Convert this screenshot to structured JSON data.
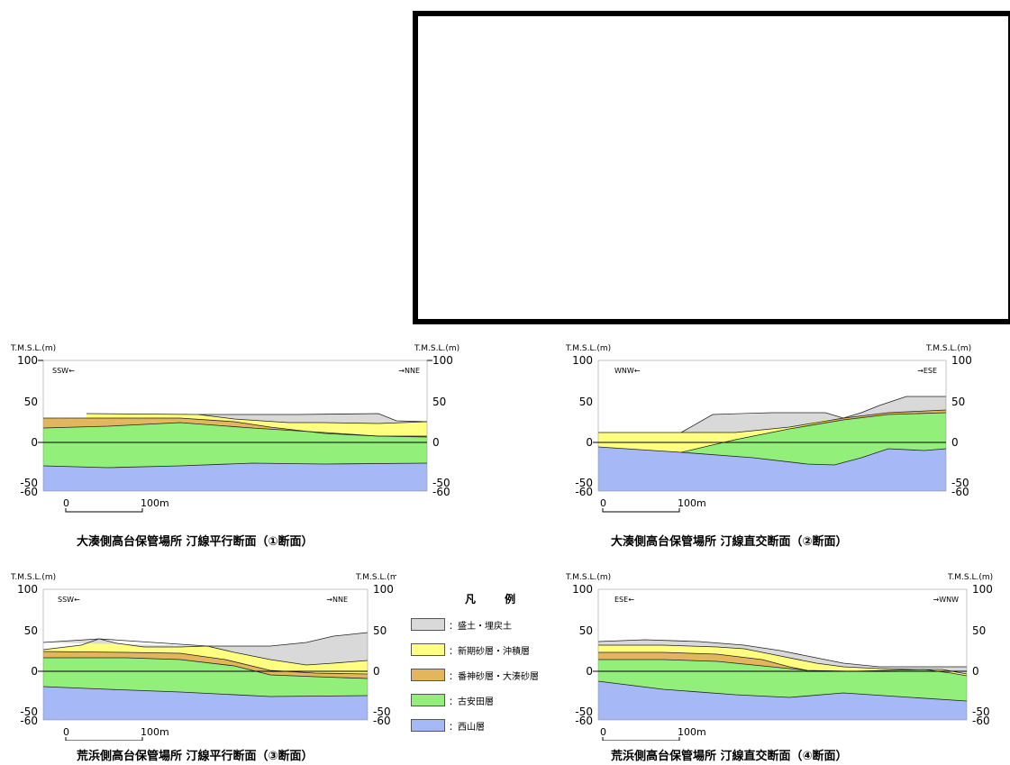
{
  "colors": {
    "fill": "#d9d9d9",
    "shinki": "#ffff80",
    "bansin": "#e3b55c",
    "furuyasuda": "#92f07a",
    "nishiyama": "#a6b8f5"
  },
  "axis": {
    "unit_label": "T.M.S.L.(m)",
    "ticks": [
      "100",
      "50",
      "0",
      "-50",
      "-60"
    ],
    "scale_zero": "0",
    "scale_label": "100m"
  },
  "sections": [
    {
      "id": "s1",
      "dir_left": "SSW←",
      "dir_right": "→NNE",
      "caption": "大湊側高台保管場所 汀線平行断面（①断面）"
    },
    {
      "id": "s2",
      "dir_left": "WNW←",
      "dir_right": "→ESE",
      "caption": "大湊側高台保管場所 汀線直交断面（②断面）"
    },
    {
      "id": "s3",
      "dir_left": "SSW←",
      "dir_right": "→NNE",
      "caption": "荒浜側高台保管場所 汀線平行断面（③断面）"
    },
    {
      "id": "s4",
      "dir_left": "ESE←",
      "dir_right": "→WNW",
      "caption": "荒浜側高台保管場所 汀線直交断面（④断面）"
    }
  ],
  "legend": {
    "title": "凡 例",
    "items": [
      {
        "label": "：盛土・埋戻土",
        "color_key": "fill"
      },
      {
        "label": "：新期砂層・沖積層",
        "color_key": "shinki"
      },
      {
        "label": "：番神砂層・大湊砂層",
        "color_key": "bansin"
      },
      {
        "label": "：古安田層",
        "color_key": "furuyasuda"
      },
      {
        "label": "：西山層",
        "color_key": "nishiyama"
      }
    ]
  }
}
